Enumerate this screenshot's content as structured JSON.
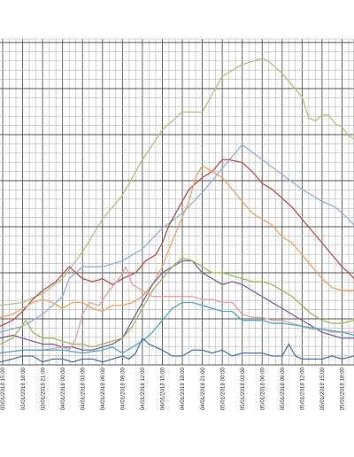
{
  "chart_data": {
    "type": "line",
    "title": "",
    "xlabel": "",
    "ylabel": "",
    "legend": "none",
    "grid": true,
    "x_tick_labels": [
      "03/01/2018 15:00",
      "03/01/2018 18:00",
      "03/01/2018 21:00",
      "04/01/2018 00:00",
      "04/01/2018 03:00",
      "04/01/2018 06:00",
      "04/01/2018 09:00",
      "04/01/2018 12:00",
      "04/01/2018 15:00",
      "04/01/2018 18:00",
      "04/01/2018 21:00",
      "05/01/2018 00:00",
      "05/01/2018 03:00",
      "05/01/2018 06:00",
      "05/01/2018 09:00",
      "05/01/2018 12:00",
      "05/01/2018 15:00",
      "05/01/2018 18:00"
    ],
    "x_hours": [
      0,
      3,
      6,
      9,
      12,
      15,
      18,
      21,
      24,
      27,
      30,
      33,
      36,
      39,
      42,
      45,
      48,
      51
    ],
    "xlim_hours": [
      -0.4,
      52.8
    ],
    "ylim": [
      0,
      100
    ],
    "series": [
      {
        "color": "#a9c67e",
        "x": [
          -0.4,
          3,
          6,
          9,
          12,
          15,
          18,
          21,
          24,
          27,
          30,
          31,
          32,
          33,
          36,
          39,
          40,
          42,
          45,
          46,
          47,
          48,
          49,
          50,
          51,
          52,
          52.8
        ],
        "y": [
          17,
          18,
          21,
          26,
          35,
          46,
          54,
          66,
          76,
          82,
          82,
          86,
          90,
          94,
          98,
          100,
          99,
          95,
          87,
          80,
          79,
          81,
          81,
          78,
          77,
          74,
          73
        ]
      },
      {
        "color": "#8fb3dc",
        "x": [
          -0.4,
          3,
          6,
          9,
          10,
          12,
          15,
          18,
          21,
          24,
          27,
          30,
          33,
          36,
          39,
          42,
          45,
          48,
          50,
          52,
          52.8
        ],
        "y": [
          8,
          10,
          14,
          20,
          26,
          30,
          30,
          32,
          36,
          43,
          48,
          55,
          63,
          71,
          66,
          61,
          56,
          52,
          50,
          46,
          44
        ]
      },
      {
        "color": "#c0504d",
        "x": [
          -0.4,
          1.5,
          3,
          4.5,
          6,
          8,
          10,
          12,
          13.5,
          15,
          16.5,
          18,
          20,
          21.5,
          23,
          24,
          25,
          26.5,
          28,
          30,
          31.5,
          33,
          34,
          36,
          37.5,
          39,
          40.5,
          42,
          43.5,
          45,
          46.5,
          48,
          49.5,
          51,
          52,
          52.8
        ],
        "y": [
          10,
          12,
          15,
          19,
          22,
          25,
          30,
          26,
          25,
          26,
          24,
          26,
          28,
          32,
          34,
          38,
          44,
          50,
          56,
          60,
          62,
          66,
          66,
          65,
          62,
          58,
          56,
          53,
          50,
          46,
          42,
          38,
          34,
          30,
          28,
          26
        ]
      },
      {
        "color": "#f0a465",
        "x": [
          -0.4,
          1.5,
          3,
          4.5,
          6,
          7.5,
          9,
          10.5,
          12,
          13.5,
          15,
          16.5,
          18,
          19.5,
          21,
          22.5,
          24,
          25,
          26.5,
          28,
          29,
          30,
          31.5,
          33,
          34.5,
          36,
          37.5,
          39,
          40.5,
          42,
          43.5,
          45,
          46.5,
          48,
          49.5,
          51,
          52,
          52.8
        ],
        "y": [
          13,
          14,
          16,
          18,
          19,
          18,
          16,
          18,
          18,
          16,
          15,
          17,
          17,
          18,
          20,
          24,
          30,
          36,
          44,
          52,
          60,
          64,
          62,
          60,
          56,
          52,
          48,
          46,
          44,
          40,
          38,
          34,
          30,
          26,
          23,
          22,
          22,
          22
        ]
      },
      {
        "color": "#8064a2",
        "x": [
          -0.4,
          1.5,
          3,
          4.5,
          6,
          7.5,
          9,
          10.5,
          12,
          13.5,
          15,
          16.5,
          18,
          19,
          20,
          21,
          22.5,
          24,
          25.5,
          27,
          28.5,
          30,
          31.5,
          33,
          34.5,
          36,
          37.5,
          39,
          40.5,
          42,
          43.5,
          45,
          46.5,
          48,
          49.5,
          51,
          52.8
        ],
        "y": [
          6,
          7,
          6,
          5,
          4,
          4,
          3,
          3,
          2,
          2,
          3,
          4,
          6,
          10,
          14,
          18,
          24,
          28,
          30,
          32,
          32,
          28,
          26,
          24,
          25,
          24,
          22,
          20,
          18,
          16,
          14,
          12,
          10,
          8,
          7,
          6,
          6
        ]
      },
      {
        "color": "#9bbb59",
        "x": [
          -0.4,
          1.5,
          2.5,
          3.5,
          4.5,
          6,
          7.5,
          9,
          10.5,
          12,
          13.5,
          15,
          16.5,
          18,
          19.5,
          21,
          22.5,
          24,
          25.5,
          27,
          28.5,
          30,
          31.5,
          33,
          34.5,
          36,
          37.5,
          39,
          40.5,
          42,
          43.5,
          45,
          46.5,
          48,
          49.5,
          51,
          52.8
        ],
        "y": [
          4,
          6,
          9,
          12,
          8,
          6,
          6,
          5,
          4,
          4,
          3,
          4,
          5,
          6,
          10,
          16,
          22,
          26,
          30,
          33,
          32,
          30,
          28,
          28,
          27,
          26,
          25,
          25,
          24,
          22,
          20,
          17,
          14,
          12,
          11,
          11,
          12
        ]
      },
      {
        "color": "#e6a0a0",
        "x": [
          -0.4,
          3,
          6,
          9,
          10,
          11,
          12,
          13,
          14.5,
          16,
          17.5,
          18.5,
          19.5,
          21,
          22.5,
          24,
          25.5,
          27,
          28.5,
          30,
          31.5,
          33,
          34.5,
          36,
          37.5,
          39,
          40.5,
          42,
          43.5,
          45,
          46.5,
          48,
          49.5,
          51,
          52.8
        ],
        "y": [
          1,
          2,
          2,
          3,
          2,
          6,
          14,
          18,
          17,
          22,
          26,
          30,
          24,
          22,
          20,
          20,
          20,
          20,
          20,
          19,
          19,
          18,
          18,
          14,
          13,
          13,
          12,
          12,
          11,
          10,
          9,
          9,
          8,
          8,
          8
        ]
      },
      {
        "color": "#4bacc6",
        "x": [
          -0.4,
          3,
          6,
          9,
          12,
          15,
          16.5,
          18,
          19.5,
          21,
          22.5,
          24,
          25.5,
          27,
          28.5,
          30,
          31.5,
          33,
          34.5,
          36,
          37.5,
          39,
          40.5,
          42,
          45,
          48,
          51,
          52.8
        ],
        "y": [
          1,
          2,
          2,
          2,
          1,
          2,
          3,
          1,
          3,
          5,
          8,
          12,
          16,
          18,
          18,
          17,
          16,
          15,
          15,
          12,
          12,
          12,
          11,
          11,
          10,
          9,
          8,
          7
        ]
      },
      {
        "color": "#5079a8",
        "x": [
          -0.4,
          1.5,
          3,
          4.5,
          6,
          7.5,
          9,
          10.5,
          12,
          13.5,
          15,
          16.5,
          18,
          19,
          20,
          21,
          22,
          23,
          24,
          25.5,
          27,
          28.5,
          30,
          31.5,
          33,
          34.5,
          36,
          37.5,
          39,
          40.5,
          42,
          43,
          44,
          45,
          46.5,
          48,
          49.5,
          51,
          52.8
        ],
        "y": [
          -2,
          -1,
          0,
          0,
          -2,
          -1,
          -1,
          -2,
          -1,
          -1,
          -2,
          -1,
          0,
          -1,
          1,
          6,
          4,
          3,
          2,
          0,
          0,
          2,
          2,
          1,
          2,
          0,
          1,
          1,
          1,
          0,
          0,
          4,
          0,
          -1,
          -1,
          -1,
          0,
          -1,
          0
        ]
      }
    ]
  }
}
